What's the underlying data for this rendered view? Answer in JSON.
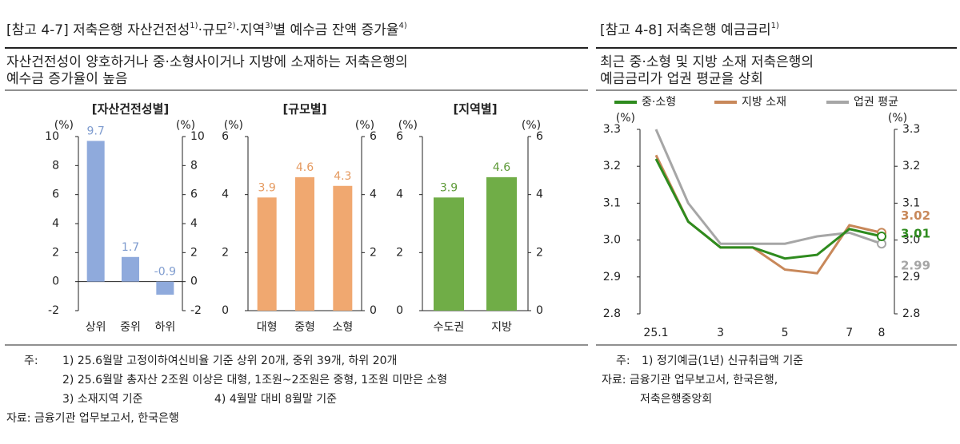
{
  "left_panel": {
    "title_parts": [
      {
        "text": "[참고 4-7] 저축은행 자산건전성",
        "sup": "1)"
      },
      {
        "text": "·규모",
        "sup": "2)"
      },
      {
        "text": "·지역",
        "sup": "3)"
      },
      {
        "text": "별 예수금 잔액 증가율",
        "sup": "4)"
      }
    ],
    "subtitle": [
      "자산건전성이 양호하거나 중·소형사이거나 지방에 소재하는 저축은행의",
      "예수금 증가율이 높음"
    ],
    "notes_label": "주:",
    "notes": [
      "1) 25.6월말 고정이하여신비율 기준 상위 20개, 중위 39개, 하위 20개",
      "2) 25.6월말 총자산 2조원 이상은 대형, 1조원~2조원은 중형, 1조원 미만은 소형",
      "3) 소재지역 기준",
      "4) 4월말 대비 8월말 기준"
    ],
    "source": "자료: 금융기관 업무보고서, 한국은행"
  },
  "right_panel": {
    "title_parts": [
      {
        "text": "[참고 4-8] 저축은행 예금금리",
        "sup": "1)"
      }
    ],
    "subtitle": [
      "최근 중·소형 및 지방 소재 저축은행의",
      "예금금리가 업권 평균을 상회"
    ],
    "notes_label": "주:",
    "notes": [
      "1) 정기예금(1년) 신규취급액 기준"
    ],
    "source": [
      "자료: 금융기관 업무보고서, 한국은행,",
      "저축은행중앙회"
    ]
  },
  "chart_data": [
    {
      "type": "bar",
      "title": "[자산건전성별]",
      "y_unit": "(%)",
      "y2_unit": "(%)",
      "categories": [
        "상위",
        "중위",
        "하위"
      ],
      "values": [
        9.7,
        1.7,
        -0.9
      ],
      "color": "#8faadc",
      "label_color": "#7f9ccf",
      "ylim": [
        -2,
        10
      ],
      "yticks": [
        -2,
        0,
        2,
        4,
        6,
        8,
        10
      ]
    },
    {
      "type": "bar",
      "title": "[규모별]",
      "y_unit": "(%)",
      "y2_unit": "(%)",
      "categories": [
        "대형",
        "중형",
        "소형"
      ],
      "values": [
        3.9,
        4.6,
        4.3
      ],
      "color": "#f0a870",
      "label_color": "#e59a60",
      "ylim": [
        0,
        6
      ],
      "yticks": [
        0,
        2,
        4,
        6
      ]
    },
    {
      "type": "bar",
      "title": "[지역별]",
      "y_unit": "(%)",
      "y2_unit": "(%)",
      "categories": [
        "수도권",
        "지방"
      ],
      "values": [
        3.9,
        4.6
      ],
      "color": "#70ad47",
      "label_color": "#5e9a38",
      "ylim": [
        0,
        6
      ],
      "yticks": [
        0,
        2,
        4,
        6
      ]
    },
    {
      "type": "line",
      "y_unit": "(%)",
      "y2_unit": "(%)",
      "categories": [
        "25.1",
        null,
        "3",
        null,
        "5",
        null,
        "7",
        "8"
      ],
      "series": [
        {
          "name": "중·소형",
          "color": "#2e8b1e",
          "values": [
            3.22,
            3.05,
            2.98,
            2.98,
            2.95,
            2.96,
            3.03,
            3.01
          ]
        },
        {
          "name": "지방 소재",
          "color": "#c8885a",
          "values": [
            3.23,
            3.05,
            2.98,
            2.98,
            2.92,
            2.91,
            3.04,
            3.02
          ]
        },
        {
          "name": "업권 평균",
          "color": "#a6a6a6",
          "values": [
            3.3,
            3.1,
            2.99,
            2.99,
            2.99,
            3.01,
            3.02,
            2.99
          ]
        }
      ],
      "ylim": [
        2.8,
        3.3
      ],
      "yticks": [
        2.8,
        2.9,
        {
          "value": 3,
          "label": "3.0"
        },
        3.1,
        3.2,
        3.3
      ]
    }
  ]
}
